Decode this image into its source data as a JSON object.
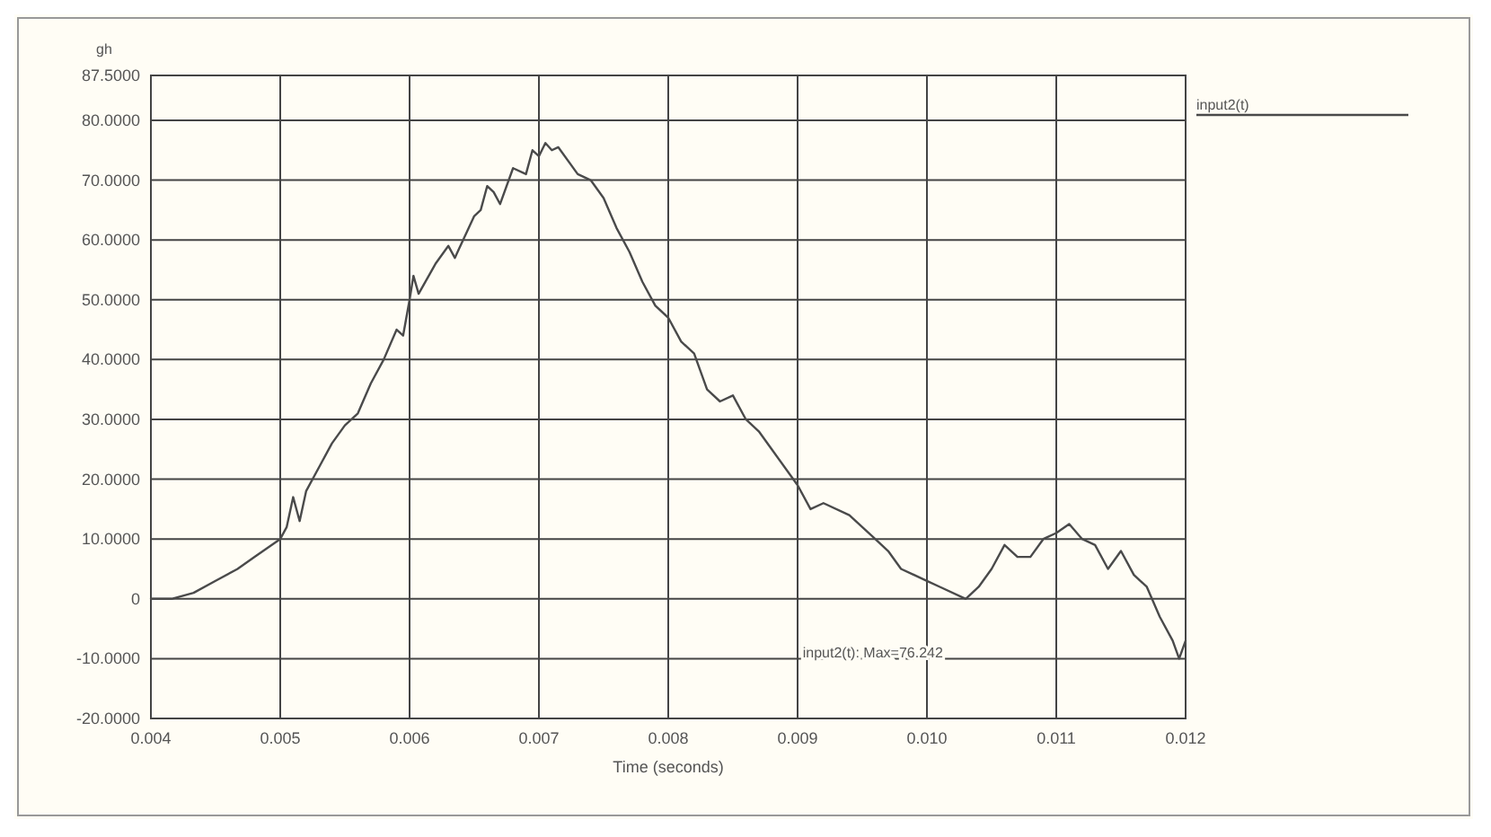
{
  "chart_data": {
    "type": "line",
    "ylabel": "gh",
    "xlabel": "Time (seconds)",
    "annotations": [
      "input2(t): Max=76.242"
    ],
    "legend": "top right",
    "grid": true,
    "line_style": "solid",
    "xlim": [
      0.004,
      0.012
    ],
    "xticks": [
      0.004,
      0.005,
      0.006,
      0.007,
      0.008,
      0.009,
      {
        "value": 0.01,
        "label": "0.010"
      },
      0.011,
      0.012
    ],
    "ylim": [
      -20,
      87.5
    ],
    "yticks": [
      {
        "value": -20,
        "label": "-20.0000"
      },
      {
        "value": -10,
        "label": "-10.0000"
      },
      0,
      {
        "value": 10,
        "label": "10.0000"
      },
      {
        "value": 20,
        "label": "20.0000"
      },
      {
        "value": 30,
        "label": "30.0000"
      },
      {
        "value": 40,
        "label": "40.0000"
      },
      {
        "value": 50,
        "label": "50.0000"
      },
      {
        "value": 60,
        "label": "60.0000"
      },
      {
        "value": 70,
        "label": "70.0000"
      },
      {
        "value": 80,
        "label": "80.0000"
      },
      {
        "value": 87.5,
        "label": "87.5000"
      }
    ],
    "series": [
      {
        "name": "input2(t)",
        "color": "#4a4a4a",
        "x": [
          0.004,
          0.00416,
          0.00433,
          0.0045,
          0.00467,
          0.0048,
          0.005,
          0.00505,
          0.0051,
          0.00515,
          0.0052,
          0.0053,
          0.0054,
          0.0055,
          0.0056,
          0.0057,
          0.0058,
          0.0059,
          0.00595,
          0.006,
          0.00603,
          0.00607,
          0.0062,
          0.0063,
          0.00635,
          0.0065,
          0.00655,
          0.0066,
          0.00665,
          0.0067,
          0.0068,
          0.0069,
          0.00695,
          0.007,
          0.00705,
          0.0071,
          0.00715,
          0.0073,
          0.0074,
          0.0075,
          0.0076,
          0.0077,
          0.0078,
          0.0079,
          0.008,
          0.0081,
          0.0082,
          0.0083,
          0.0084,
          0.0085,
          0.0086,
          0.0087,
          0.0088,
          0.009,
          0.0091,
          0.0092,
          0.0094,
          0.0095,
          0.0096,
          0.0097,
          0.0098,
          0.01,
          0.0101,
          0.0103,
          0.0104,
          0.0105,
          0.0106,
          0.0107,
          0.0108,
          0.0109,
          0.011,
          0.0111,
          0.0112,
          0.0113,
          0.0114,
          0.0115,
          0.0116,
          0.0117,
          0.0118,
          0.0119,
          0.01195,
          0.012
        ],
        "values": [
          0,
          0,
          1,
          3,
          5,
          7,
          10,
          12,
          17,
          13,
          18,
          22,
          26,
          29,
          31,
          36,
          40,
          45,
          44,
          50,
          54,
          51,
          56,
          59,
          57,
          64,
          65,
          69,
          68,
          66,
          72,
          71,
          75,
          74,
          76.2,
          75,
          75.5,
          71,
          70,
          67,
          62,
          58,
          53,
          49,
          47,
          43,
          41,
          35,
          33,
          34,
          30,
          28,
          25,
          19,
          15,
          16,
          14,
          12,
          10,
          8,
          5,
          3,
          2,
          0,
          2,
          5,
          9,
          7,
          7,
          10,
          11,
          12.5,
          10,
          9,
          5,
          8,
          4,
          2,
          -3,
          -7,
          -10,
          -7
        ]
      }
    ]
  }
}
